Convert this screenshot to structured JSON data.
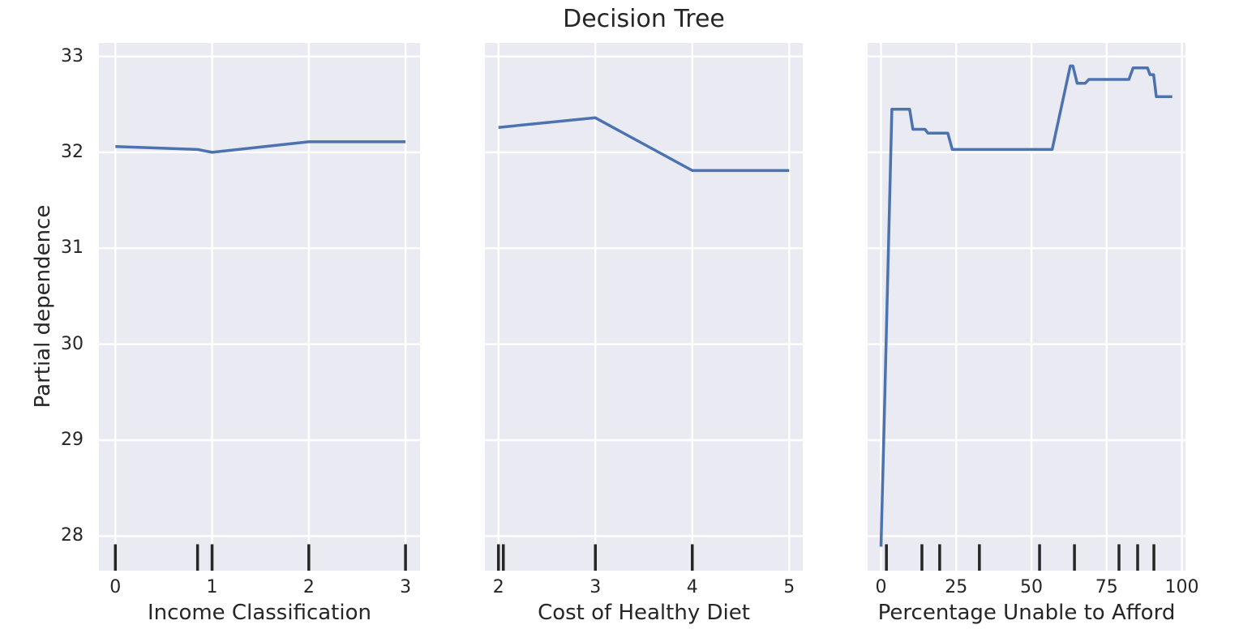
{
  "chart_data": {
    "type": "line",
    "figure_title": "Decision Tree",
    "ylabel": "Partial dependence",
    "ylim": [
      27.64,
      33.14
    ],
    "yticks": [
      33,
      32,
      31,
      30,
      29,
      28
    ],
    "grid": true,
    "legend": "none",
    "colors": {
      "line": "#4c72b0",
      "panel_background": "#eaeaf2",
      "gridline": "#ffffff",
      "rug": "#262626",
      "text": "#262626"
    },
    "panels": [
      {
        "xlabel": "Income Classification",
        "xticks": [
          0,
          1,
          2,
          3
        ],
        "xlim": [
          -0.17,
          3.15
        ],
        "series": {
          "x": [
            0,
            0.85,
            1,
            2,
            3
          ],
          "y": [
            32.06,
            32.03,
            32.0,
            32.11,
            32.11
          ]
        },
        "decile_rug_x": [
          0,
          0.85,
          1,
          2,
          3
        ]
      },
      {
        "xlabel": "Cost of Healthy Diet",
        "xticks": [
          2,
          3,
          4,
          5
        ],
        "xlim": [
          1.86,
          5.14
        ],
        "series": {
          "x": [
            2,
            3,
            4,
            5
          ],
          "y": [
            32.26,
            32.36,
            31.81,
            31.81
          ]
        },
        "decile_rug_x": [
          2.0,
          2.05,
          3.0,
          4.0
        ]
      },
      {
        "xlabel": "Percentage Unable to Afford",
        "xticks": [
          0,
          25,
          50,
          75,
          100
        ],
        "xlim": [
          -4.45,
          101.2
        ],
        "series": {
          "x": [
            0,
            1,
            3.6,
            9.5,
            10.6,
            14.6,
            15.6,
            22.2,
            23.7,
            56.9,
            62.9,
            63.8,
            65.2,
            67.9,
            69.1,
            82.4,
            83.8,
            88.6,
            89.4,
            90.6,
            91.5,
            96.8
          ],
          "y": [
            27.89,
            29.12,
            32.45,
            32.45,
            32.24,
            32.24,
            32.2,
            32.2,
            32.03,
            32.03,
            32.9,
            32.9,
            32.72,
            32.72,
            32.76,
            32.76,
            32.88,
            32.88,
            32.81,
            32.81,
            32.58,
            32.58
          ]
        },
        "decile_rug_x": [
          1.8,
          13.6,
          19.5,
          32.7,
          52.7,
          64.3,
          79.1,
          85.3,
          90.7
        ]
      }
    ]
  }
}
